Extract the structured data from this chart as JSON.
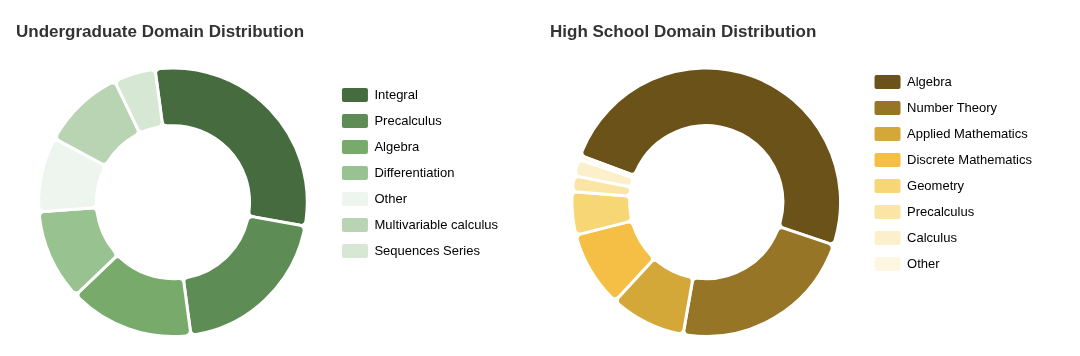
{
  "chart_data": [
    {
      "type": "donut",
      "title": "Undergraduate Domain Distribution",
      "legend": "right",
      "categories": [
        "Integral",
        "Precalculus",
        "Algebra",
        "Differentiation",
        "Other",
        "Multivariable calculus",
        "Sequences Series"
      ],
      "values": [
        30,
        20,
        15,
        11,
        9,
        10,
        5
      ],
      "colors": [
        "#466b3f",
        "#5d8c54",
        "#77aa6b",
        "#98c28f",
        "#eef4ee",
        "#b9d4b3",
        "#d6e7d3"
      ]
    },
    {
      "type": "donut",
      "title": "High School Domain Distribution",
      "legend": "right",
      "categories": [
        "Algebra",
        "Number Theory",
        "Applied Mathematics",
        "Discrete Mathematics",
        "Geometry",
        "Precalculus",
        "Calculus",
        "Other"
      ],
      "values": [
        49.5,
        22.6,
        9.1,
        9.2,
        5.2,
        1.9,
        2,
        0.5
      ],
      "colors": [
        "#6b5219",
        "#967626",
        "#d4a838",
        "#f4bf44",
        "#f7d675",
        "#fae5a4",
        "#fcf0cc",
        "#fdf7e2"
      ]
    }
  ]
}
